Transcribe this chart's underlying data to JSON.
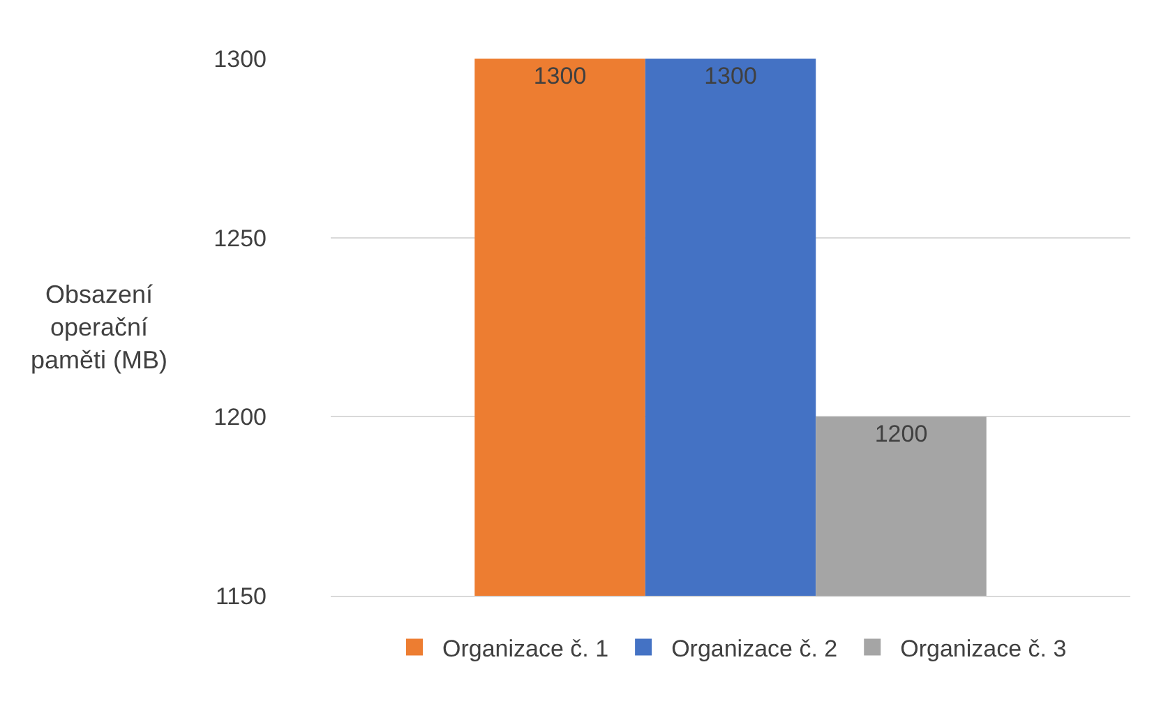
{
  "chart_data": {
    "type": "bar",
    "ylabel": "Obsazení operační paměti (MB)",
    "categories": [
      null
    ],
    "series": [
      {
        "name": "Organizace č. 1",
        "color": "#ed7d31",
        "values": [
          1300
        ]
      },
      {
        "name": "Organizace č. 2",
        "color": "#4472c4",
        "values": [
          1300
        ]
      },
      {
        "name": "Organizace č. 3",
        "color": "#a5a5a5",
        "values": [
          1200
        ]
      }
    ],
    "ylim": [
      1150,
      1300
    ],
    "yticks": [
      1150,
      1200,
      1250,
      1300
    ],
    "grid": "y",
    "legend": "bottom",
    "data_labels": true,
    "tick_labels": "y"
  }
}
